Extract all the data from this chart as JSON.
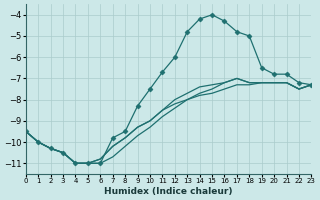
{
  "xlabel": "Humidex (Indice chaleur)",
  "xlim": [
    0,
    23
  ],
  "ylim": [
    -11.5,
    -3.5
  ],
  "yticks": [
    -11,
    -10,
    -9,
    -8,
    -7,
    -6,
    -5,
    -4
  ],
  "xticks": [
    0,
    1,
    2,
    3,
    4,
    5,
    6,
    7,
    8,
    9,
    10,
    11,
    12,
    13,
    14,
    15,
    16,
    17,
    18,
    19,
    20,
    21,
    22,
    23
  ],
  "bg_color": "#cce8e8",
  "grid_color": "#aacccc",
  "line_color": "#1f7070",
  "line1_x": [
    0,
    1,
    2,
    3,
    4,
    5,
    6,
    7,
    8,
    9,
    10,
    11,
    12,
    13,
    14,
    15,
    16,
    17,
    18,
    19,
    20,
    21,
    22,
    23
  ],
  "line1_y": [
    -9.5,
    -10.0,
    -10.3,
    -10.5,
    -11.0,
    -11.0,
    -11.0,
    -9.8,
    -9.5,
    -8.3,
    -7.5,
    -6.7,
    -6.0,
    -4.8,
    -4.2,
    -4.0,
    -4.3,
    -4.8,
    -5.0,
    -6.5,
    -6.8,
    -6.8,
    -7.2,
    -7.3
  ],
  "line2_x": [
    0,
    1,
    2,
    3,
    4,
    5,
    6,
    7,
    8,
    9,
    10,
    11,
    12,
    13,
    14,
    15,
    16,
    17,
    18,
    19,
    20,
    21,
    22,
    23
  ],
  "line2_y": [
    -9.5,
    -10.0,
    -10.3,
    -10.5,
    -11.0,
    -11.0,
    -11.0,
    -10.7,
    -10.2,
    -9.7,
    -9.3,
    -8.8,
    -8.4,
    -8.0,
    -7.7,
    -7.5,
    -7.2,
    -7.0,
    -7.2,
    -7.2,
    -7.2,
    -7.2,
    -7.5,
    -7.3
  ],
  "line3_x": [
    0,
    1,
    2,
    3,
    4,
    5,
    6,
    7,
    8,
    9,
    10,
    11,
    12,
    13,
    14,
    15,
    16,
    17,
    18,
    19,
    20,
    21,
    22,
    23
  ],
  "line3_y": [
    -9.5,
    -10.0,
    -10.3,
    -10.5,
    -11.0,
    -11.0,
    -10.8,
    -10.2,
    -9.8,
    -9.3,
    -9.0,
    -8.5,
    -8.0,
    -7.7,
    -7.4,
    -7.3,
    -7.2,
    -7.0,
    -7.2,
    -7.2,
    -7.2,
    -7.2,
    -7.5,
    -7.3
  ],
  "line4_x": [
    0,
    1,
    2,
    3,
    4,
    5,
    6,
    7,
    8,
    9,
    10,
    11,
    12,
    13,
    14,
    15,
    16,
    17,
    18,
    19,
    20,
    21,
    22,
    23
  ],
  "line4_y": [
    -9.5,
    -10.0,
    -10.3,
    -10.5,
    -11.0,
    -11.0,
    -10.8,
    -10.2,
    -9.8,
    -9.3,
    -9.0,
    -8.5,
    -8.2,
    -8.0,
    -7.8,
    -7.7,
    -7.5,
    -7.3,
    -7.3,
    -7.2,
    -7.2,
    -7.2,
    -7.5,
    -7.3
  ]
}
